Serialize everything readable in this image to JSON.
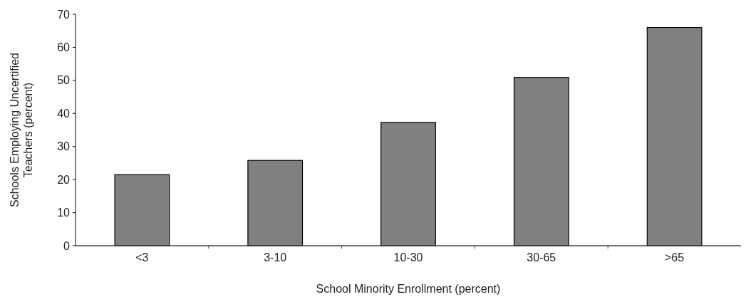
{
  "chart_data": {
    "type": "bar",
    "xlabel": "School Minority Enrollment (percent)",
    "ylabel": "Schools Employing Uncertified Teachers (percent)",
    "categories": [
      "<3",
      "3-10",
      "10-30",
      "30-65",
      ">65"
    ],
    "values": [
      21.5,
      25.8,
      37.3,
      50.9,
      66.0
    ],
    "color": "#808080",
    "ylim": [
      0,
      70
    ],
    "yticks": [
      0,
      10,
      20,
      30,
      40,
      50,
      60,
      70
    ],
    "grid": false
  }
}
